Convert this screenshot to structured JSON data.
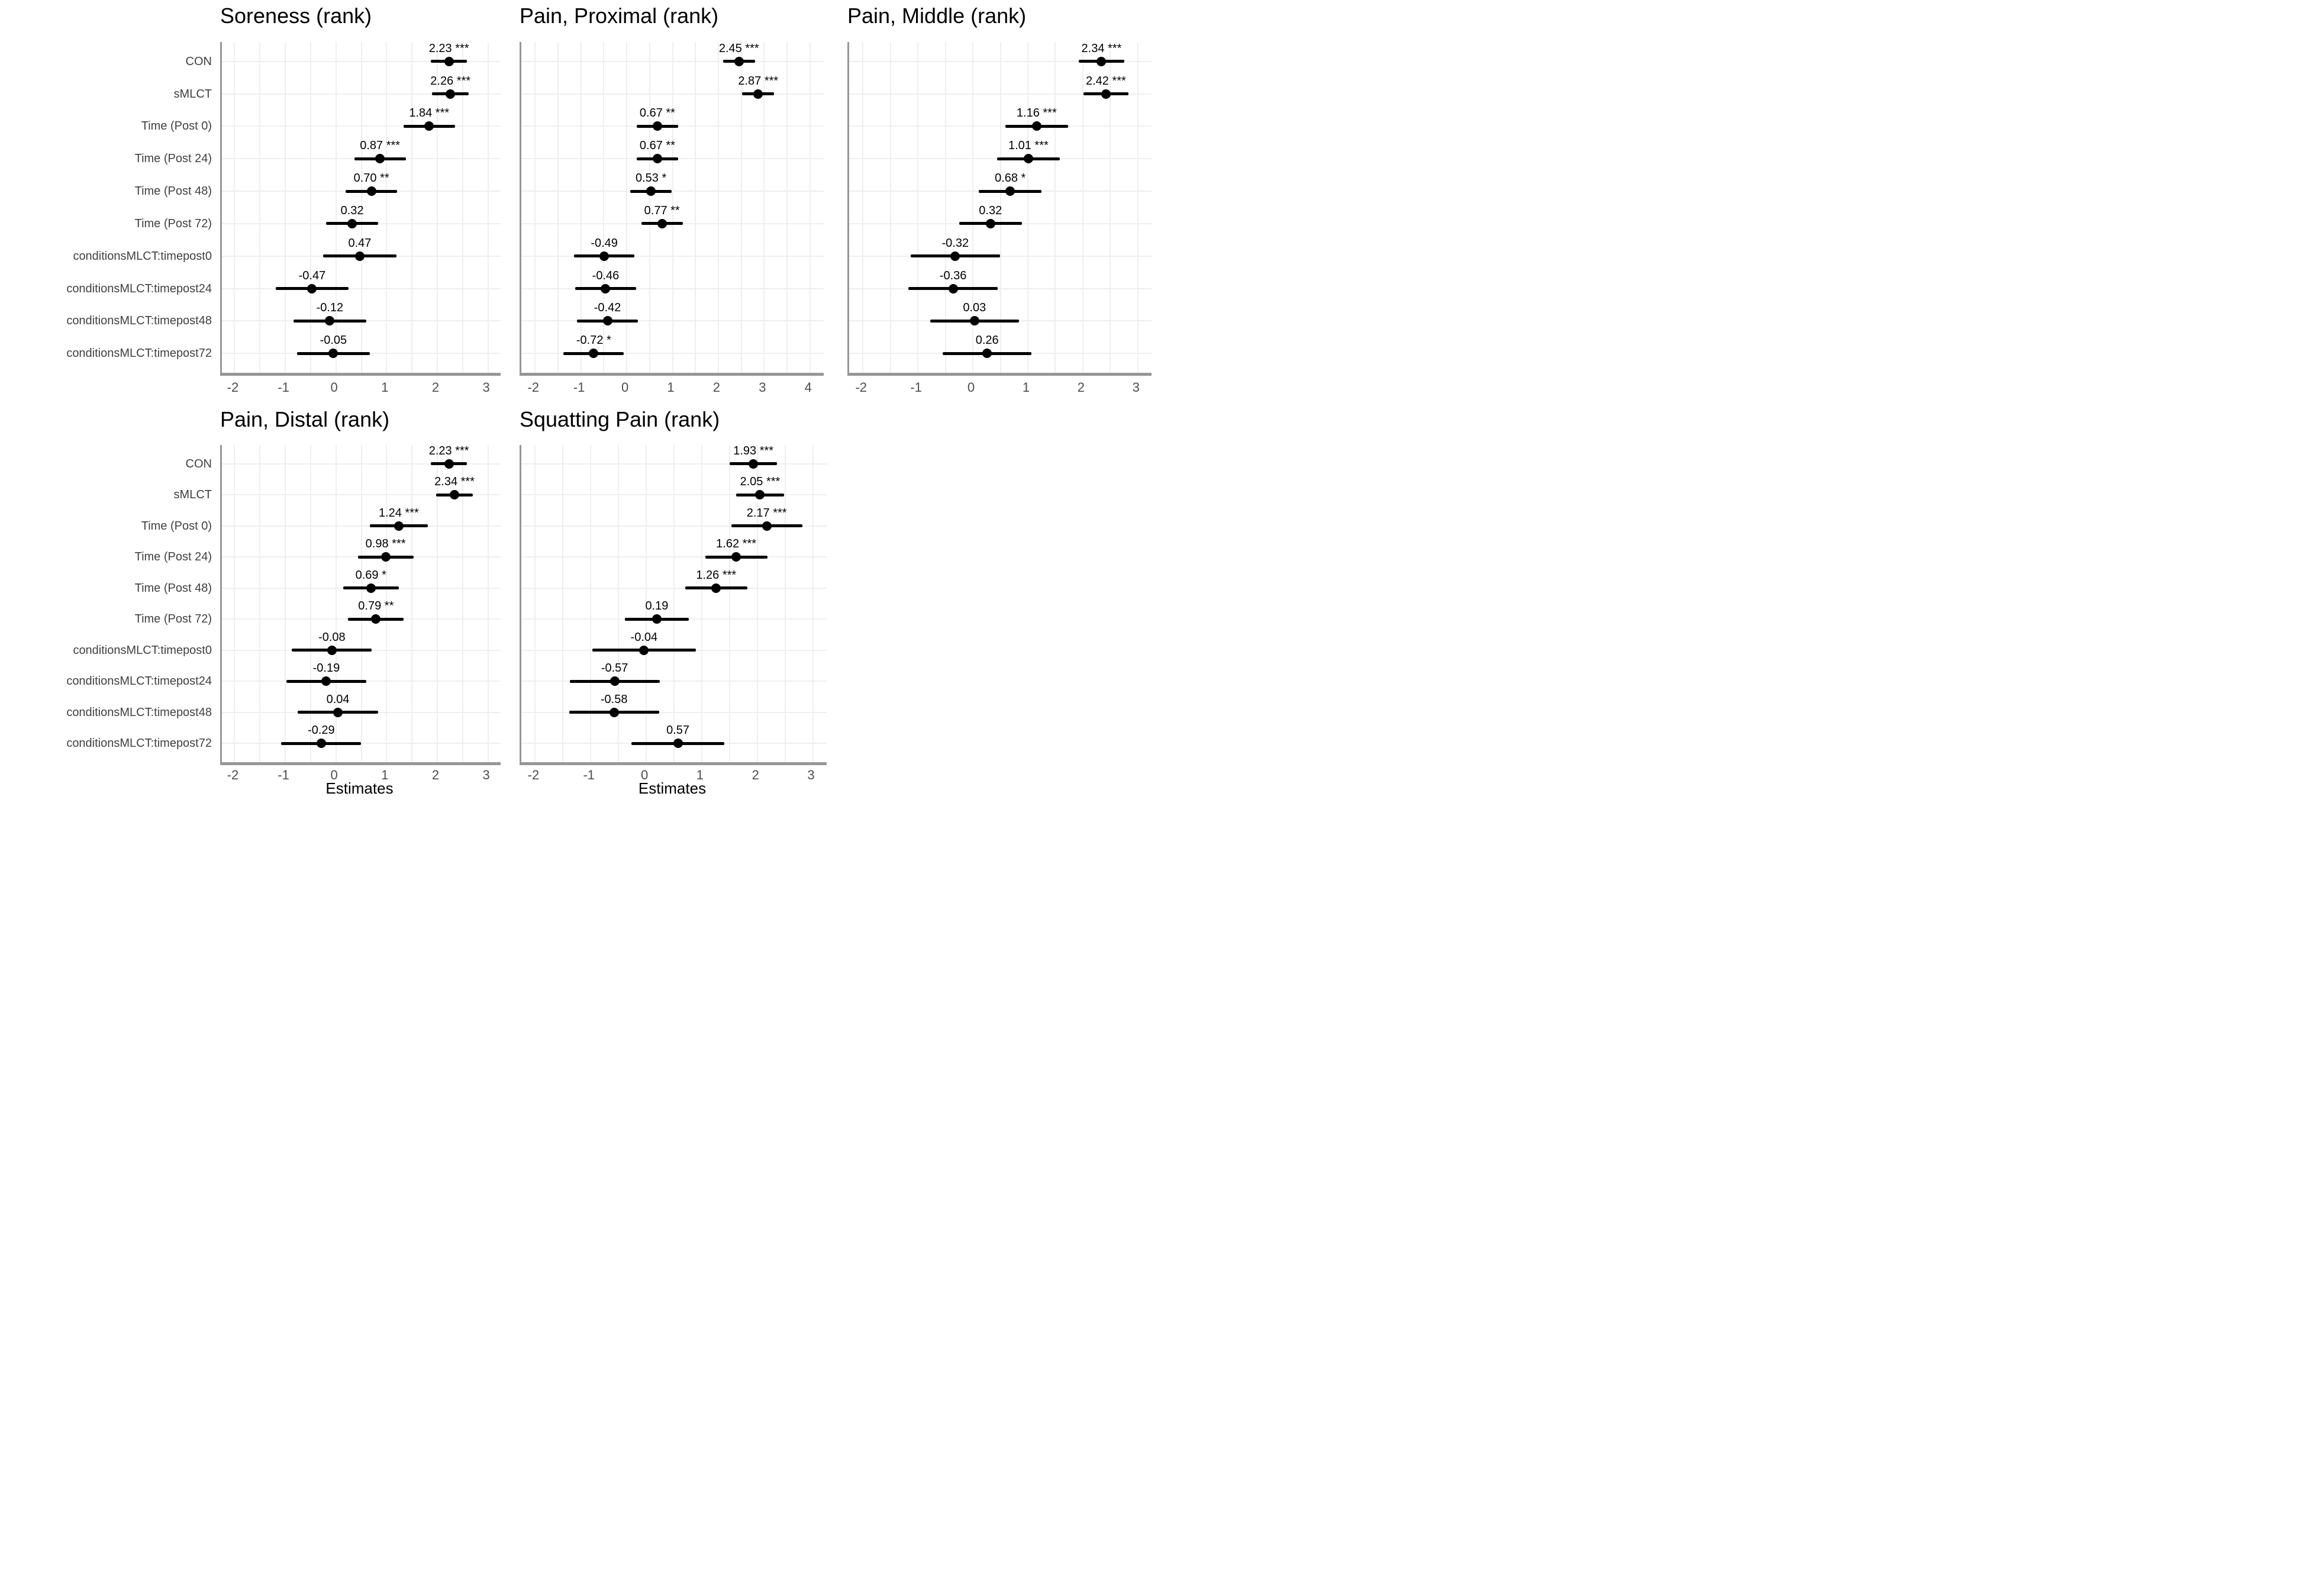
{
  "figure": {
    "background": "#ffffff",
    "x_axis_label": "Estimates",
    "categories": [
      "CON",
      "sMLCT",
      "Time (Post 0)",
      "Time (Post 24)",
      "Time (Post 48)",
      "Time (Post 72)",
      "conditionsMLCT:timepost0",
      "conditionsMLCT:timepost24",
      "conditionsMLCT:timepost48",
      "conditionsMLCT:timepost72"
    ],
    "colors": {
      "point": "#000000",
      "ci_line": "#000000",
      "gridline": "#efefef",
      "axis_line": "#969696",
      "tick_text": "#4d4d4d",
      "category_text": "#404040",
      "title_text": "#000000",
      "estimate_text": "#000000"
    }
  },
  "chart_data": [
    {
      "type": "scatter",
      "subtype": "forest-coefficient-plot",
      "title": "Soreness (rank)",
      "xlabel": "",
      "xlim": [
        -2.25,
        3.25
      ],
      "xticks": [
        -2,
        -1,
        0,
        1,
        2,
        3
      ],
      "grid": true,
      "show_category_labels": true,
      "points": [
        {
          "category": "CON",
          "estimate": 2.23,
          "ci_low": 1.87,
          "ci_high": 2.59,
          "label": "2.23 ***"
        },
        {
          "category": "sMLCT",
          "estimate": 2.26,
          "ci_low": 1.9,
          "ci_high": 2.62,
          "label": "2.26 ***"
        },
        {
          "category": "Time (Post 0)",
          "estimate": 1.84,
          "ci_low": 1.33,
          "ci_high": 2.35,
          "label": "1.84 ***"
        },
        {
          "category": "Time (Post 24)",
          "estimate": 0.87,
          "ci_low": 0.36,
          "ci_high": 1.38,
          "label": "0.87 ***"
        },
        {
          "category": "Time (Post 48)",
          "estimate": 0.7,
          "ci_low": 0.19,
          "ci_high": 1.21,
          "label": "0.70 **"
        },
        {
          "category": "Time (Post 72)",
          "estimate": 0.32,
          "ci_low": -0.19,
          "ci_high": 0.83,
          "label": "0.32"
        },
        {
          "category": "conditionsMLCT:timepost0",
          "estimate": 0.47,
          "ci_low": -0.25,
          "ci_high": 1.19,
          "label": "0.47"
        },
        {
          "category": "conditionsMLCT:timepost24",
          "estimate": -0.47,
          "ci_low": -1.19,
          "ci_high": 0.25,
          "label": "-0.47"
        },
        {
          "category": "conditionsMLCT:timepost48",
          "estimate": -0.12,
          "ci_low": -0.84,
          "ci_high": 0.6,
          "label": "-0.12"
        },
        {
          "category": "conditionsMLCT:timepost72",
          "estimate": -0.05,
          "ci_low": -0.77,
          "ci_high": 0.67,
          "label": "-0.05"
        }
      ]
    },
    {
      "type": "scatter",
      "subtype": "forest-coefficient-plot",
      "title": "Pain, Proximal (rank)",
      "xlabel": "",
      "xlim": [
        -2.3,
        4.3
      ],
      "xticks": [
        -2,
        -1,
        0,
        1,
        2,
        3,
        4
      ],
      "grid": true,
      "show_category_labels": false,
      "points": [
        {
          "category": "CON",
          "estimate": 2.45,
          "ci_low": 2.1,
          "ci_high": 2.8,
          "label": "2.45 ***"
        },
        {
          "category": "sMLCT",
          "estimate": 2.87,
          "ci_low": 2.52,
          "ci_high": 3.22,
          "label": "2.87 ***"
        },
        {
          "category": "Time (Post 0)",
          "estimate": 0.67,
          "ci_low": 0.22,
          "ci_high": 1.12,
          "label": "0.67 **"
        },
        {
          "category": "Time (Post 24)",
          "estimate": 0.67,
          "ci_low": 0.22,
          "ci_high": 1.12,
          "label": "0.67 **"
        },
        {
          "category": "Time (Post 48)",
          "estimate": 0.53,
          "ci_low": 0.08,
          "ci_high": 0.98,
          "label": "0.53 *"
        },
        {
          "category": "Time (Post 72)",
          "estimate": 0.77,
          "ci_low": 0.32,
          "ci_high": 1.22,
          "label": "0.77 **"
        },
        {
          "category": "conditionsMLCT:timepost0",
          "estimate": -0.49,
          "ci_low": -1.15,
          "ci_high": 0.17,
          "label": "-0.49"
        },
        {
          "category": "conditionsMLCT:timepost24",
          "estimate": -0.46,
          "ci_low": -1.12,
          "ci_high": 0.2,
          "label": "-0.46"
        },
        {
          "category": "conditionsMLCT:timepost48",
          "estimate": -0.42,
          "ci_low": -1.08,
          "ci_high": 0.24,
          "label": "-0.42"
        },
        {
          "category": "conditionsMLCT:timepost72",
          "estimate": -0.72,
          "ci_low": -1.38,
          "ci_high": -0.06,
          "label": "-0.72 *"
        }
      ]
    },
    {
      "type": "scatter",
      "subtype": "forest-coefficient-plot",
      "title": "Pain, Middle (rank)",
      "xlabel": "",
      "xlim": [
        -2.25,
        3.25
      ],
      "xticks": [
        -2,
        -1,
        0,
        1,
        2,
        3
      ],
      "grid": true,
      "show_category_labels": false,
      "points": [
        {
          "category": "CON",
          "estimate": 2.34,
          "ci_low": 1.93,
          "ci_high": 2.75,
          "label": "2.34 ***"
        },
        {
          "category": "sMLCT",
          "estimate": 2.42,
          "ci_low": 2.01,
          "ci_high": 2.83,
          "label": "2.42 ***"
        },
        {
          "category": "Time (Post 0)",
          "estimate": 1.16,
          "ci_low": 0.59,
          "ci_high": 1.73,
          "label": "1.16 ***"
        },
        {
          "category": "Time (Post 24)",
          "estimate": 1.01,
          "ci_low": 0.44,
          "ci_high": 1.58,
          "label": "1.01 ***"
        },
        {
          "category": "Time (Post 48)",
          "estimate": 0.68,
          "ci_low": 0.11,
          "ci_high": 1.25,
          "label": "0.68 *"
        },
        {
          "category": "Time (Post 72)",
          "estimate": 0.32,
          "ci_low": -0.25,
          "ci_high": 0.89,
          "label": "0.32"
        },
        {
          "category": "conditionsMLCT:timepost0",
          "estimate": -0.32,
          "ci_low": -1.13,
          "ci_high": 0.49,
          "label": "-0.32"
        },
        {
          "category": "conditionsMLCT:timepost24",
          "estimate": -0.36,
          "ci_low": -1.17,
          "ci_high": 0.45,
          "label": "-0.36"
        },
        {
          "category": "conditionsMLCT:timepost48",
          "estimate": 0.03,
          "ci_low": -0.78,
          "ci_high": 0.84,
          "label": "0.03"
        },
        {
          "category": "conditionsMLCT:timepost72",
          "estimate": 0.26,
          "ci_low": -0.55,
          "ci_high": 1.07,
          "label": "0.26"
        }
      ]
    },
    {
      "type": "scatter",
      "subtype": "forest-coefficient-plot",
      "title": "Pain, Distal (rank)",
      "xlabel": "Estimates",
      "xlim": [
        -2.25,
        3.25
      ],
      "xticks": [
        -2,
        -1,
        0,
        1,
        2,
        3
      ],
      "grid": true,
      "show_category_labels": true,
      "points": [
        {
          "category": "CON",
          "estimate": 2.23,
          "ci_low": 1.87,
          "ci_high": 2.59,
          "label": "2.23 ***"
        },
        {
          "category": "sMLCT",
          "estimate": 2.34,
          "ci_low": 1.98,
          "ci_high": 2.7,
          "label": "2.34 ***"
        },
        {
          "category": "Time (Post 0)",
          "estimate": 1.24,
          "ci_low": 0.67,
          "ci_high": 1.81,
          "label": "1.24 ***"
        },
        {
          "category": "Time (Post 24)",
          "estimate": 0.98,
          "ci_low": 0.43,
          "ci_high": 1.53,
          "label": "0.98 ***"
        },
        {
          "category": "Time (Post 48)",
          "estimate": 0.69,
          "ci_low": 0.14,
          "ci_high": 1.24,
          "label": "0.69 *"
        },
        {
          "category": "Time (Post 72)",
          "estimate": 0.79,
          "ci_low": 0.24,
          "ci_high": 1.34,
          "label": "0.79 **"
        },
        {
          "category": "conditionsMLCT:timepost0",
          "estimate": -0.08,
          "ci_low": -0.87,
          "ci_high": 0.71,
          "label": "-0.08"
        },
        {
          "category": "conditionsMLCT:timepost24",
          "estimate": -0.19,
          "ci_low": -0.98,
          "ci_high": 0.6,
          "label": "-0.19"
        },
        {
          "category": "conditionsMLCT:timepost48",
          "estimate": 0.04,
          "ci_low": -0.75,
          "ci_high": 0.83,
          "label": "0.04"
        },
        {
          "category": "conditionsMLCT:timepost72",
          "estimate": -0.29,
          "ci_low": -1.08,
          "ci_high": 0.5,
          "label": "-0.29"
        }
      ]
    },
    {
      "type": "scatter",
      "subtype": "forest-coefficient-plot",
      "title": "Squatting Pain (rank)",
      "xlabel": "Estimates",
      "xlim": [
        -2.25,
        3.25
      ],
      "xticks": [
        -2,
        -1,
        0,
        1,
        2,
        3
      ],
      "grid": true,
      "show_category_labels": false,
      "points": [
        {
          "category": "CON",
          "estimate": 1.93,
          "ci_low": 1.5,
          "ci_high": 2.36,
          "label": "1.93 ***"
        },
        {
          "category": "sMLCT",
          "estimate": 2.05,
          "ci_low": 1.62,
          "ci_high": 2.48,
          "label": "2.05 ***"
        },
        {
          "category": "Time (Post 0)",
          "estimate": 2.17,
          "ci_low": 1.53,
          "ci_high": 2.81,
          "label": "2.17 ***"
        },
        {
          "category": "Time (Post 24)",
          "estimate": 1.62,
          "ci_low": 1.06,
          "ci_high": 2.18,
          "label": "1.62 ***"
        },
        {
          "category": "Time (Post 48)",
          "estimate": 1.26,
          "ci_low": 0.7,
          "ci_high": 1.82,
          "label": "1.26 ***"
        },
        {
          "category": "Time (Post 72)",
          "estimate": 0.19,
          "ci_low": -0.39,
          "ci_high": 0.77,
          "label": "0.19"
        },
        {
          "category": "conditionsMLCT:timepost0",
          "estimate": -0.04,
          "ci_low": -0.97,
          "ci_high": 0.89,
          "label": "-0.04"
        },
        {
          "category": "conditionsMLCT:timepost24",
          "estimate": -0.57,
          "ci_low": -1.38,
          "ci_high": 0.24,
          "label": "-0.57"
        },
        {
          "category": "conditionsMLCT:timepost48",
          "estimate": -0.58,
          "ci_low": -1.39,
          "ci_high": 0.23,
          "label": "-0.58"
        },
        {
          "category": "conditionsMLCT:timepost72",
          "estimate": 0.57,
          "ci_low": -0.27,
          "ci_high": 1.41,
          "label": "0.57"
        }
      ]
    }
  ]
}
